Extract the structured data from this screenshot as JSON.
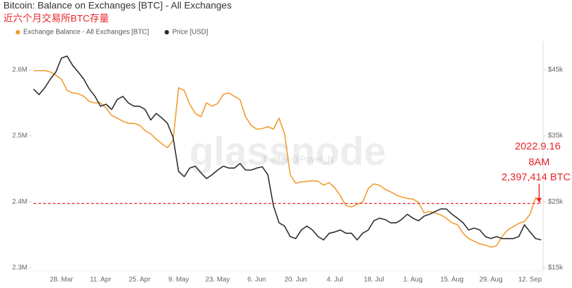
{
  "chart_data": {
    "type": "line",
    "title": "Bitcoin: Balance on Exchanges [BTC] - All Exchanges",
    "subtitle": "近六个月交易所BTC存量",
    "watermark": "glassnode",
    "watermark_note": "Twitter @Povel_N",
    "annotation_lines": [
      "2022.9.16",
      "8AM",
      "2,397,414 BTC"
    ],
    "annotation_color": "#e8262b",
    "grid": false,
    "categories": [
      null,
      null,
      null,
      null,
      null,
      "28. Mar",
      null,
      null,
      null,
      null,
      null,
      null,
      "11. Apr",
      null,
      null,
      null,
      null,
      null,
      null,
      "25. Apr",
      null,
      null,
      null,
      null,
      null,
      null,
      "9. May",
      null,
      null,
      null,
      null,
      null,
      null,
      "23. May",
      null,
      null,
      null,
      null,
      null,
      null,
      "6. Jun",
      null,
      null,
      null,
      null,
      null,
      null,
      "20. Jun",
      null,
      null,
      null,
      null,
      null,
      null,
      "4. Jul",
      null,
      null,
      null,
      null,
      null,
      null,
      "18. Jul",
      null,
      null,
      null,
      null,
      null,
      null,
      "1. Aug",
      null,
      null,
      null,
      null,
      null,
      null,
      "15. Aug",
      null,
      null,
      null,
      null,
      null,
      null,
      "29. Aug",
      null,
      null,
      null,
      null,
      null,
      null,
      "12. Sep",
      null,
      null
    ],
    "series": [
      {
        "name": "Exchange Balance - All Exchanges [BTC]",
        "color": "#f29b2b",
        "axis": "y",
        "values": [
          2599000,
          2599000,
          2599000,
          2597000,
          2592000,
          2586000,
          2569000,
          2565000,
          2564000,
          2560000,
          2552000,
          2550000,
          2550000,
          2542000,
          2531000,
          2527000,
          2522000,
          2519000,
          2519000,
          2516000,
          2508000,
          2503000,
          2495000,
          2488000,
          2482000,
          2493000,
          2573000,
          2569000,
          2548000,
          2534000,
          2529000,
          2550000,
          2545000,
          2549000,
          2563000,
          2565000,
          2560000,
          2555000,
          2529000,
          2516000,
          2510000,
          2511000,
          2514000,
          2510000,
          2527000,
          2503000,
          2441000,
          2428000,
          2430000,
          2431000,
          2432000,
          2431000,
          2425000,
          2429000,
          2421000,
          2409000,
          2394000,
          2392000,
          2396000,
          2399000,
          2420000,
          2427000,
          2425000,
          2419000,
          2415000,
          2410000,
          2407000,
          2405000,
          2404000,
          2399000,
          2383000,
          2385000,
          2383000,
          2380000,
          2375000,
          2368000,
          2365000,
          2352000,
          2344000,
          2340000,
          2336000,
          2334000,
          2331000,
          2333000,
          2347000,
          2357000,
          2362000,
          2367000,
          2370000,
          2381000,
          2406000,
          2397414
        ]
      },
      {
        "name": "Price [USD]",
        "color": "#2b2b2b",
        "axis": "y2",
        "values": [
          42100,
          41250,
          42300,
          43600,
          44700,
          46800,
          47100,
          45700,
          44700,
          43600,
          42100,
          41000,
          39500,
          39800,
          39000,
          40500,
          41000,
          40000,
          39500,
          39500,
          39000,
          37400,
          38400,
          37700,
          36900,
          34800,
          29600,
          28800,
          30100,
          30400,
          29400,
          28500,
          29100,
          29800,
          30400,
          30100,
          30100,
          30800,
          29800,
          29800,
          30100,
          30300,
          29100,
          24400,
          21800,
          21300,
          19700,
          19400,
          20700,
          21300,
          20700,
          19700,
          19200,
          20200,
          20400,
          20700,
          20200,
          20200,
          19200,
          20200,
          20700,
          22100,
          22500,
          22300,
          21800,
          21800,
          22300,
          23100,
          22500,
          22100,
          22800,
          23100,
          23500,
          23900,
          23900,
          23100,
          22500,
          21800,
          20700,
          21000,
          20700,
          19700,
          19400,
          19700,
          19400,
          19400,
          19400,
          19700,
          21500,
          20400,
          19400,
          19200
        ]
      }
    ],
    "ylim": [
      2295000,
      2637500
    ],
    "yticks": [
      {
        "value": 2300000,
        "label": "2.3M"
      },
      {
        "value": 2400000,
        "label": "2.4M"
      },
      {
        "value": 2500000,
        "label": "2.5M"
      },
      {
        "value": 2600000,
        "label": "2.6M"
      }
    ],
    "y2lim": [
      14500,
      48750
    ],
    "y2ticks": [
      {
        "value": 15000,
        "label": "$15k"
      },
      {
        "value": 25000,
        "label": "$25k"
      },
      {
        "value": 35000,
        "label": "$35k"
      },
      {
        "value": 45000,
        "label": "$45k"
      }
    ]
  }
}
